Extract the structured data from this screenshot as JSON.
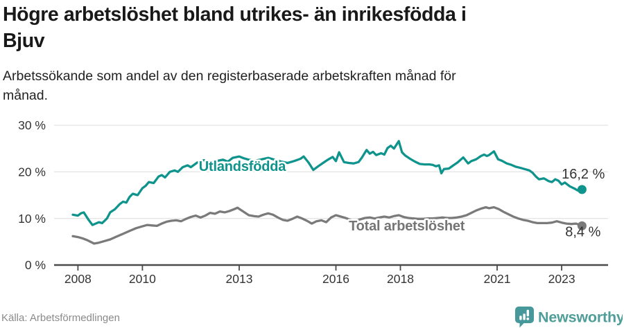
{
  "header": {
    "title_lines": [
      "Högre arbetslöshet bland utrikes- än inrikesfödda i",
      "Bjuv"
    ],
    "subtitle_lines": [
      "Arbetssökande som andel av den registerbaserade arbetskraften månad för",
      "månad."
    ]
  },
  "footer": {
    "source": "Källa: Arbetsförmedlingen",
    "brand_name": "Newsworthy"
  },
  "colors": {
    "accent_teal": "#0E948C",
    "line_gray": "#7a7a7a",
    "label_gray": "#757575",
    "axis_dark": "#4a4a4a",
    "gridline": "#dcdcdc",
    "tick_text": "#333333",
    "value_text": "#333333",
    "brand_teal": "#4F9D98"
  },
  "chart_data": {
    "type": "line",
    "title": "Högre arbetslöshet bland utrikes- än inrikesfödda i Bjuv",
    "subtitle": "Arbetssökande som andel av den registerbaserade arbetskraften månad för månad.",
    "unit": "%",
    "xlabel": "",
    "ylabel": "",
    "ylim": [
      0,
      30
    ],
    "yticks": [
      0,
      10,
      20,
      30
    ],
    "ytick_suffix": " %",
    "xticks": [
      2008,
      2010,
      2013,
      2016,
      2018,
      2021,
      2023
    ],
    "xrange": [
      2007.26,
      2024.44
    ],
    "grid": "horizontal",
    "legend_position": "inline-labels",
    "series": [
      {
        "name": "Total arbetslöshet",
        "color": "#7a7a7a",
        "label_color": "#757575",
        "end_label": "8,4 %",
        "end_value": 8.4,
        "end_label_side": "below",
        "label": {
          "text": "Total arbetslöshet",
          "x_year": 2016.4,
          "y_value": 7.4
        },
        "points": [
          [
            2007.84,
            6.2
          ],
          [
            2008.0,
            6.0
          ],
          [
            2008.15,
            5.7
          ],
          [
            2008.3,
            5.3
          ],
          [
            2008.5,
            4.6
          ],
          [
            2008.65,
            4.8
          ],
          [
            2008.8,
            5.1
          ],
          [
            2009.0,
            5.5
          ],
          [
            2009.2,
            6.1
          ],
          [
            2009.4,
            6.7
          ],
          [
            2009.6,
            7.3
          ],
          [
            2009.8,
            7.9
          ],
          [
            2010.0,
            8.3
          ],
          [
            2010.15,
            8.6
          ],
          [
            2010.3,
            8.5
          ],
          [
            2010.45,
            8.4
          ],
          [
            2010.6,
            8.9
          ],
          [
            2010.75,
            9.3
          ],
          [
            2010.9,
            9.5
          ],
          [
            2011.05,
            9.6
          ],
          [
            2011.2,
            9.4
          ],
          [
            2011.35,
            9.9
          ],
          [
            2011.5,
            10.3
          ],
          [
            2011.65,
            10.6
          ],
          [
            2011.8,
            10.2
          ],
          [
            2011.95,
            10.6
          ],
          [
            2012.1,
            11.2
          ],
          [
            2012.25,
            11.0
          ],
          [
            2012.4,
            11.5
          ],
          [
            2012.55,
            11.3
          ],
          [
            2012.7,
            11.6
          ],
          [
            2012.85,
            12.0
          ],
          [
            2012.95,
            12.3
          ],
          [
            2013.1,
            11.6
          ],
          [
            2013.3,
            10.7
          ],
          [
            2013.45,
            10.5
          ],
          [
            2013.6,
            10.4
          ],
          [
            2013.75,
            10.8
          ],
          [
            2013.9,
            11.1
          ],
          [
            2014.05,
            10.8
          ],
          [
            2014.2,
            10.2
          ],
          [
            2014.35,
            9.7
          ],
          [
            2014.5,
            9.5
          ],
          [
            2014.65,
            9.9
          ],
          [
            2014.8,
            10.4
          ],
          [
            2014.95,
            10.0
          ],
          [
            2015.1,
            9.5
          ],
          [
            2015.25,
            8.9
          ],
          [
            2015.4,
            9.4
          ],
          [
            2015.55,
            9.6
          ],
          [
            2015.7,
            9.2
          ],
          [
            2015.85,
            10.2
          ],
          [
            2016.0,
            10.7
          ],
          [
            2016.15,
            10.4
          ],
          [
            2016.3,
            10.1
          ],
          [
            2016.45,
            9.7
          ],
          [
            2016.6,
            9.5
          ],
          [
            2016.75,
            9.8
          ],
          [
            2016.9,
            10.1
          ],
          [
            2017.05,
            10.2
          ],
          [
            2017.2,
            10.0
          ],
          [
            2017.35,
            10.2
          ],
          [
            2017.5,
            10.4
          ],
          [
            2017.65,
            10.2
          ],
          [
            2017.8,
            10.5
          ],
          [
            2017.95,
            10.7
          ],
          [
            2018.1,
            10.3
          ],
          [
            2018.25,
            10.1
          ],
          [
            2018.4,
            10.0
          ],
          [
            2018.55,
            9.9
          ],
          [
            2018.7,
            9.9
          ],
          [
            2018.85,
            10.0
          ],
          [
            2019.0,
            10.0
          ],
          [
            2019.15,
            10.1
          ],
          [
            2019.3,
            10.2
          ],
          [
            2019.45,
            10.1
          ],
          [
            2019.6,
            10.1
          ],
          [
            2019.75,
            10.2
          ],
          [
            2019.9,
            10.4
          ],
          [
            2020.05,
            10.7
          ],
          [
            2020.2,
            11.2
          ],
          [
            2020.35,
            11.7
          ],
          [
            2020.5,
            12.1
          ],
          [
            2020.65,
            12.4
          ],
          [
            2020.75,
            12.2
          ],
          [
            2020.9,
            12.4
          ],
          [
            2021.05,
            12.0
          ],
          [
            2021.2,
            11.4
          ],
          [
            2021.35,
            10.9
          ],
          [
            2021.5,
            10.4
          ],
          [
            2021.65,
            10.0
          ],
          [
            2021.8,
            9.7
          ],
          [
            2021.95,
            9.5
          ],
          [
            2022.1,
            9.2
          ],
          [
            2022.25,
            9.0
          ],
          [
            2022.4,
            9.0
          ],
          [
            2022.55,
            9.0
          ],
          [
            2022.7,
            9.1
          ],
          [
            2022.85,
            9.4
          ],
          [
            2023.0,
            9.1
          ],
          [
            2023.15,
            8.9
          ],
          [
            2023.3,
            8.8
          ],
          [
            2023.45,
            8.9
          ],
          [
            2023.63,
            8.4
          ]
        ]
      },
      {
        "name": "Utlandsfödda",
        "color": "#0E948C",
        "label_color": "#0E948C",
        "end_label": "16,2 %",
        "end_value": 16.2,
        "end_label_side": "above",
        "label": {
          "text": "Utlandsfödda",
          "x_year": 2011.75,
          "y_value": 20.2
        },
        "points": [
          [
            2007.84,
            10.8
          ],
          [
            2008.0,
            10.6
          ],
          [
            2008.09,
            11.1
          ],
          [
            2008.18,
            11.3
          ],
          [
            2008.33,
            9.7
          ],
          [
            2008.45,
            8.6
          ],
          [
            2008.55,
            8.9
          ],
          [
            2008.65,
            9.2
          ],
          [
            2008.75,
            9.0
          ],
          [
            2008.9,
            10.0
          ],
          [
            2009.0,
            11.3
          ],
          [
            2009.15,
            12.0
          ],
          [
            2009.3,
            13.1
          ],
          [
            2009.4,
            13.6
          ],
          [
            2009.5,
            13.4
          ],
          [
            2009.6,
            14.6
          ],
          [
            2009.7,
            15.3
          ],
          [
            2009.85,
            15.0
          ],
          [
            2010.0,
            16.5
          ],
          [
            2010.1,
            17.0
          ],
          [
            2010.2,
            17.8
          ],
          [
            2010.35,
            17.6
          ],
          [
            2010.5,
            19.0
          ],
          [
            2010.6,
            19.3
          ],
          [
            2010.7,
            18.8
          ],
          [
            2010.85,
            20.0
          ],
          [
            2011.0,
            20.3
          ],
          [
            2011.1,
            20.0
          ],
          [
            2011.25,
            21.0
          ],
          [
            2011.4,
            21.4
          ],
          [
            2011.5,
            21.0
          ],
          [
            2011.7,
            22.0
          ],
          [
            2011.9,
            22.5
          ],
          [
            2012.0,
            22.3
          ],
          [
            2012.2,
            21.8
          ],
          [
            2012.35,
            22.4
          ],
          [
            2012.5,
            22.6
          ],
          [
            2012.65,
            22.2
          ],
          [
            2012.8,
            23.0
          ],
          [
            2013.0,
            23.3
          ],
          [
            2013.15,
            22.9
          ],
          [
            2013.3,
            22.6
          ],
          [
            2013.5,
            22.4
          ],
          [
            2013.7,
            22.7
          ],
          [
            2013.9,
            23.0
          ],
          [
            2014.1,
            22.6
          ],
          [
            2014.3,
            22.2
          ],
          [
            2014.5,
            21.9
          ],
          [
            2014.7,
            22.3
          ],
          [
            2014.9,
            22.8
          ],
          [
            2015.0,
            23.3
          ],
          [
            2015.15,
            22.0
          ],
          [
            2015.3,
            20.4
          ],
          [
            2015.45,
            21.2
          ],
          [
            2015.6,
            21.9
          ],
          [
            2015.75,
            22.6
          ],
          [
            2015.9,
            23.2
          ],
          [
            2016.0,
            22.3
          ],
          [
            2016.1,
            24.2
          ],
          [
            2016.25,
            22.1
          ],
          [
            2016.4,
            21.9
          ],
          [
            2016.55,
            21.8
          ],
          [
            2016.7,
            22.1
          ],
          [
            2016.8,
            23.0
          ],
          [
            2016.95,
            24.7
          ],
          [
            2017.05,
            23.9
          ],
          [
            2017.15,
            24.3
          ],
          [
            2017.25,
            23.6
          ],
          [
            2017.4,
            24.0
          ],
          [
            2017.5,
            23.7
          ],
          [
            2017.6,
            25.1
          ],
          [
            2017.7,
            25.6
          ],
          [
            2017.8,
            25.0
          ],
          [
            2017.95,
            26.6
          ],
          [
            2018.05,
            24.2
          ],
          [
            2018.15,
            23.5
          ],
          [
            2018.3,
            22.8
          ],
          [
            2018.45,
            22.2
          ],
          [
            2018.6,
            21.7
          ],
          [
            2018.75,
            21.6
          ],
          [
            2018.9,
            21.6
          ],
          [
            2019.0,
            21.5
          ],
          [
            2019.1,
            21.2
          ],
          [
            2019.2,
            21.4
          ],
          [
            2019.27,
            19.7
          ],
          [
            2019.35,
            20.6
          ],
          [
            2019.5,
            20.7
          ],
          [
            2019.62,
            21.3
          ],
          [
            2019.77,
            22.0
          ],
          [
            2019.95,
            23.1
          ],
          [
            2020.1,
            21.8
          ],
          [
            2020.2,
            22.3
          ],
          [
            2020.35,
            22.7
          ],
          [
            2020.5,
            23.4
          ],
          [
            2020.6,
            23.7
          ],
          [
            2020.68,
            23.4
          ],
          [
            2020.75,
            23.6
          ],
          [
            2020.9,
            24.4
          ],
          [
            2021.03,
            22.7
          ],
          [
            2021.14,
            22.4
          ],
          [
            2021.3,
            21.8
          ],
          [
            2021.44,
            21.5
          ],
          [
            2021.57,
            21.1
          ],
          [
            2021.7,
            20.9
          ],
          [
            2021.85,
            20.6
          ],
          [
            2022.0,
            20.3
          ],
          [
            2022.1,
            19.8
          ],
          [
            2022.2,
            19.0
          ],
          [
            2022.3,
            18.4
          ],
          [
            2022.45,
            18.6
          ],
          [
            2022.6,
            18.0
          ],
          [
            2022.7,
            17.8
          ],
          [
            2022.8,
            18.4
          ],
          [
            2022.9,
            18.1
          ],
          [
            2023.0,
            17.3
          ],
          [
            2023.1,
            17.7
          ],
          [
            2023.25,
            16.9
          ],
          [
            2023.4,
            16.4
          ],
          [
            2023.5,
            16.0
          ],
          [
            2023.63,
            16.2
          ]
        ]
      }
    ]
  }
}
